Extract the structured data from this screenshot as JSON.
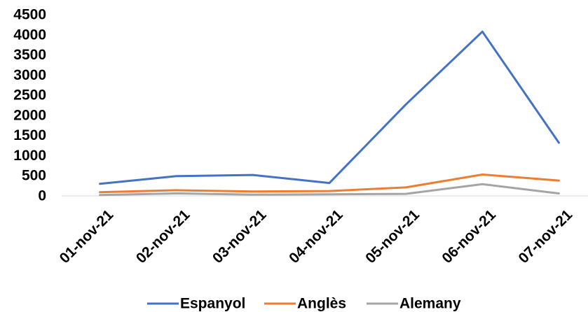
{
  "chart_data": {
    "type": "line",
    "categories": [
      "01-nov-21",
      "02-nov-21",
      "03-nov-21",
      "04-nov-21",
      "05-nov-21",
      "06-nov-21",
      "07-nov-21"
    ],
    "series": [
      {
        "name": "Espanyol",
        "color": "#4472C4",
        "values": [
          300,
          490,
          520,
          320,
          2270,
          4080,
          1320
        ]
      },
      {
        "name": "Anglès",
        "color": "#ED7D31",
        "values": [
          90,
          140,
          110,
          120,
          210,
          530,
          380
        ]
      },
      {
        "name": "Alemany",
        "color": "#A5A5A5",
        "values": [
          20,
          60,
          30,
          40,
          50,
          290,
          60
        ]
      }
    ],
    "yticks": [
      "0",
      "500",
      "1000",
      "1500",
      "2000",
      "2500",
      "3000",
      "3500",
      "4000",
      "4500"
    ],
    "ylim": [
      0,
      4500
    ],
    "grid": false,
    "legend_position": "bottom"
  }
}
